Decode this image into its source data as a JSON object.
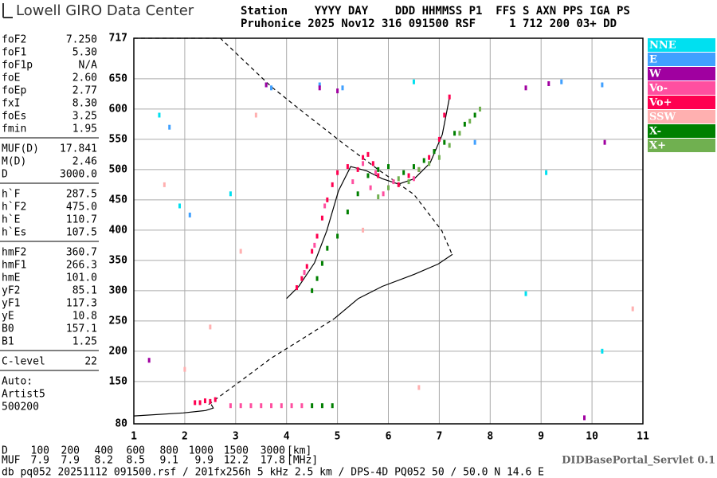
{
  "header": {
    "logo": "Lowell GIRO Data Center",
    "line1": "Station    YYYY DAY    DDD HHMMSS P1  FFS S AXN PPS IGA PS",
    "line2": "Pruhonice 2025 Nov12 316 091500 RSF     1 712 200 03+ DD"
  },
  "parameters": [
    [
      {
        "name": "foF2",
        "value": "7.250"
      },
      {
        "name": "foF1",
        "value": "5.30"
      },
      {
        "name": "foF1p",
        "value": "N/A"
      },
      {
        "name": "foE",
        "value": "2.60"
      },
      {
        "name": "foEp",
        "value": "2.77"
      },
      {
        "name": "fxI",
        "value": "8.30"
      },
      {
        "name": "foEs",
        "value": "3.25"
      },
      {
        "name": "fmin",
        "value": "1.95"
      }
    ],
    [
      {
        "name": "MUF(D)",
        "value": "17.841"
      },
      {
        "name": "M(D)",
        "value": "2.46"
      },
      {
        "name": "D",
        "value": "3000.0"
      }
    ],
    [
      {
        "name": "h`F",
        "value": "287.5"
      },
      {
        "name": "h`F2",
        "value": "475.0"
      },
      {
        "name": "h`E",
        "value": "110.7"
      },
      {
        "name": "h`Es",
        "value": "107.5"
      }
    ],
    [
      {
        "name": "hmF2",
        "value": "360.7"
      },
      {
        "name": "hmF1",
        "value": "266.3"
      },
      {
        "name": "hmE",
        "value": "101.0"
      },
      {
        "name": "yF2",
        "value": "85.1"
      },
      {
        "name": "yF1",
        "value": "117.3"
      },
      {
        "name": "yE",
        "value": "10.8"
      },
      {
        "name": "B0",
        "value": "157.1"
      },
      {
        "name": "B1",
        "value": "1.25"
      }
    ],
    [
      {
        "name": "C-level",
        "value": "22"
      }
    ],
    [
      {
        "name": "Auto:"
      },
      {
        "name": "Artist5"
      },
      {
        "name": "500200"
      }
    ]
  ],
  "chart_data": {
    "type": "scatter",
    "xlim": [
      1,
      11
    ],
    "ylim": [
      80,
      717
    ],
    "xticks": [
      1,
      2,
      3,
      4,
      5,
      6,
      7,
      8,
      9,
      10,
      11
    ],
    "yticks": [
      80,
      150,
      200,
      250,
      300,
      350,
      400,
      450,
      500,
      550,
      600,
      650,
      717
    ],
    "grid": true,
    "series": [
      {
        "name": "NNE",
        "color": "#00e0f0",
        "x": [
          1.5,
          2.9,
          3.6,
          6.5,
          8.7,
          9.1,
          10.2,
          1.9
        ],
        "y": [
          590,
          460,
          640,
          645,
          295,
          495,
          200,
          440
        ]
      },
      {
        "name": "E",
        "color": "#40a0ff",
        "x": [
          1.7,
          2.1,
          3.7,
          4.65,
          5.1,
          7.7,
          9.4,
          10.2
        ],
        "y": [
          570,
          425,
          635,
          640,
          635,
          545,
          645,
          640
        ]
      },
      {
        "name": "W",
        "color": "#a000a0",
        "x": [
          3.6,
          4.65,
          5.0,
          8.7,
          9.15,
          10.25,
          9.85,
          1.3
        ],
        "y": [
          640,
          635,
          630,
          635,
          642,
          545,
          90,
          185
        ]
      },
      {
        "name": "Vo-",
        "color": "#ff4fa0",
        "x": [
          4.35,
          4.55,
          4.75,
          5.3,
          5.5,
          5.65,
          5.75,
          5.9,
          6.1,
          6.5,
          6.9,
          2.9,
          3.1,
          3.3,
          3.5,
          3.7,
          3.9,
          4.1,
          4.3
        ],
        "y": [
          330,
          375,
          440,
          480,
          510,
          470,
          495,
          460,
          480,
          485,
          530,
          110,
          110,
          110,
          110,
          110,
          110,
          110,
          110
        ]
      },
      {
        "name": "Vo+",
        "color": "#ff0050",
        "x": [
          4.2,
          4.3,
          4.4,
          4.5,
          4.6,
          4.7,
          4.8,
          4.9,
          5.0,
          5.2,
          5.4,
          5.5,
          5.6,
          5.7,
          5.8,
          6.0,
          6.2,
          6.4,
          6.6,
          6.8,
          7.0,
          7.1,
          7.2,
          2.2,
          2.3,
          2.4,
          2.5,
          2.6
        ],
        "y": [
          305,
          320,
          340,
          365,
          390,
          420,
          450,
          475,
          495,
          505,
          500,
          520,
          525,
          510,
          490,
          470,
          475,
          490,
          500,
          520,
          550,
          590,
          620,
          115,
          115,
          118,
          117,
          120
        ]
      },
      {
        "name": "SSW",
        "color": "#ffb0b0",
        "x": [
          2.0,
          2.5,
          3.1,
          5.5,
          6.6,
          10.8,
          1.6,
          3.4
        ],
        "y": [
          170,
          240,
          365,
          400,
          140,
          270,
          475,
          590
        ]
      },
      {
        "name": "X-",
        "color": "#008000",
        "x": [
          4.5,
          4.6,
          4.7,
          4.8,
          5.0,
          5.2,
          5.4,
          5.6,
          5.8,
          6.0,
          6.3,
          6.5,
          6.7,
          6.9,
          7.1,
          7.3,
          7.5,
          7.7,
          4.5,
          4.7,
          4.9
        ],
        "y": [
          300,
          320,
          345,
          370,
          390,
          430,
          460,
          490,
          500,
          505,
          495,
          505,
          515,
          530,
          545,
          560,
          575,
          590,
          110,
          110,
          110
        ]
      },
      {
        "name": "X+",
        "color": "#70b050",
        "x": [
          5.8,
          6.0,
          6.2,
          6.4,
          6.6,
          6.8,
          7.0,
          7.2,
          7.4,
          7.6,
          7.8
        ],
        "y": [
          455,
          470,
          485,
          480,
          500,
          510,
          520,
          540,
          560,
          580,
          600
        ]
      }
    ],
    "curves": [
      {
        "style": "dashed",
        "x": [
          1,
          2.7,
          3.7,
          4.4,
          5.1,
          5.8,
          6.5,
          7.05,
          7.25
        ],
        "y": [
          717,
          717,
          637,
          590,
          544,
          500,
          459,
          399,
          360
        ]
      },
      {
        "style": "dashed",
        "x": [
          2.47,
          3.07,
          3.69,
          4.32,
          4.94
        ],
        "y": [
          112,
          149,
          188,
          221,
          254
        ]
      },
      {
        "style": "solid",
        "x": [
          4.94,
          5.41,
          5.88,
          6.51,
          6.98,
          7.26
        ],
        "y": [
          254,
          287,
          307,
          327,
          344,
          360
        ]
      },
      {
        "style": "solid",
        "x": [
          1,
          1.97,
          2.41,
          2.56,
          2.52
        ],
        "y": [
          93,
          98,
          102,
          106,
          112
        ]
      },
      {
        "style": "solid",
        "x": [
          4.0,
          4.24,
          4.55,
          4.79,
          5.02,
          5.26,
          5.57,
          5.88,
          6.2,
          6.51,
          6.82,
          7.06,
          7.21
        ],
        "y": [
          287,
          307,
          346,
          399,
          465,
          505,
          498,
          485,
          476,
          485,
          511,
          558,
          623
        ]
      }
    ]
  },
  "muf_table": {
    "rows": [
      {
        "label": "D",
        "values": [
          100,
          200,
          400,
          600,
          800,
          1000,
          1500,
          3000
        ],
        "unit": "[km]"
      },
      {
        "label": "MUF",
        "values": [
          7.9,
          7.9,
          8.2,
          8.5,
          9.1,
          9.9,
          12.2,
          17.8
        ],
        "unit": "[MHz]"
      }
    ]
  },
  "servlet": "DIDBasePortal_Servlet 0.1",
  "footer": "db pq052 20251112 091500.rsf / 201fx256h 5 kHz 2.5 km / DPS-4D PQ052 50 / 50.0 N 14.6 E"
}
